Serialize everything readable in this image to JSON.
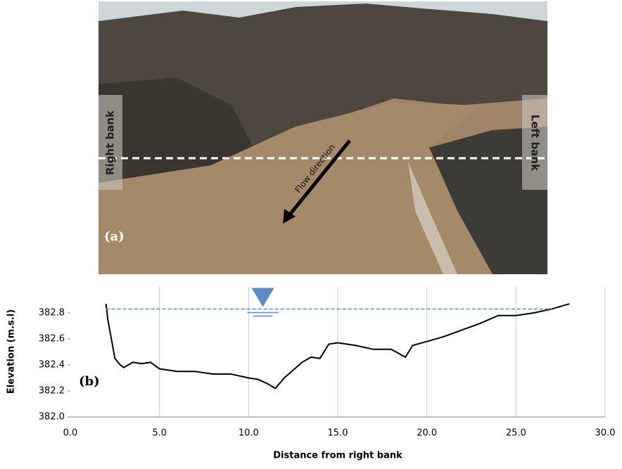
{
  "photo": {
    "panel_label": "(a)",
    "right_bank": "Right bank",
    "left_bank": "Left bank",
    "flow_direction": "Flow direction"
  },
  "chart_data": {
    "type": "line",
    "panel_label": "(b)",
    "x_label": "Distance from right bank",
    "y_label": "Elevation (m.s.l)",
    "x": [
      2.0,
      2.1,
      2.3,
      2.5,
      2.8,
      3.0,
      3.5,
      4.0,
      4.5,
      5.0,
      6.0,
      7.0,
      8.0,
      9.0,
      10.0,
      10.5,
      11.0,
      11.5,
      12.0,
      12.5,
      13.0,
      13.5,
      14.0,
      14.5,
      15.0,
      16.0,
      17.0,
      18.0,
      18.8,
      19.2,
      20.0,
      21.0,
      22.0,
      23.0,
      24.0,
      25.0,
      26.0,
      27.0,
      28.0
    ],
    "series": [
      {
        "color": "#000000",
        "values": [
          382.87,
          382.75,
          382.6,
          382.45,
          382.4,
          382.38,
          382.42,
          382.41,
          382.42,
          382.37,
          382.35,
          382.35,
          382.33,
          382.33,
          382.3,
          382.29,
          382.26,
          382.22,
          382.3,
          382.36,
          382.42,
          382.46,
          382.45,
          382.56,
          382.57,
          382.55,
          382.52,
          382.52,
          382.46,
          382.55,
          382.58,
          382.62,
          382.67,
          382.72,
          382.78,
          382.78,
          382.8,
          382.83,
          382.87
        ]
      }
    ],
    "water_level": {
      "value": 382.83,
      "x_range": [
        2.0,
        27.0
      ],
      "marker_x": 10.8,
      "color": "#5b8ac6"
    },
    "xlim": [
      0,
      30
    ],
    "ylim": [
      382.0,
      383.0
    ],
    "xticks": [
      {
        "value": 0,
        "label": "0.0"
      },
      {
        "value": 5,
        "label": "5.0"
      },
      {
        "value": 10,
        "label": "10.0"
      },
      {
        "value": 15,
        "label": "15.0"
      },
      {
        "value": 20,
        "label": "20.0"
      },
      {
        "value": 25,
        "label": "25.0"
      },
      {
        "value": 30,
        "label": "30.0"
      }
    ],
    "yticks": [
      {
        "value": 382.0,
        "label": "382.0"
      },
      382.2,
      382.4,
      382.6,
      382.8
    ],
    "grid": true
  }
}
